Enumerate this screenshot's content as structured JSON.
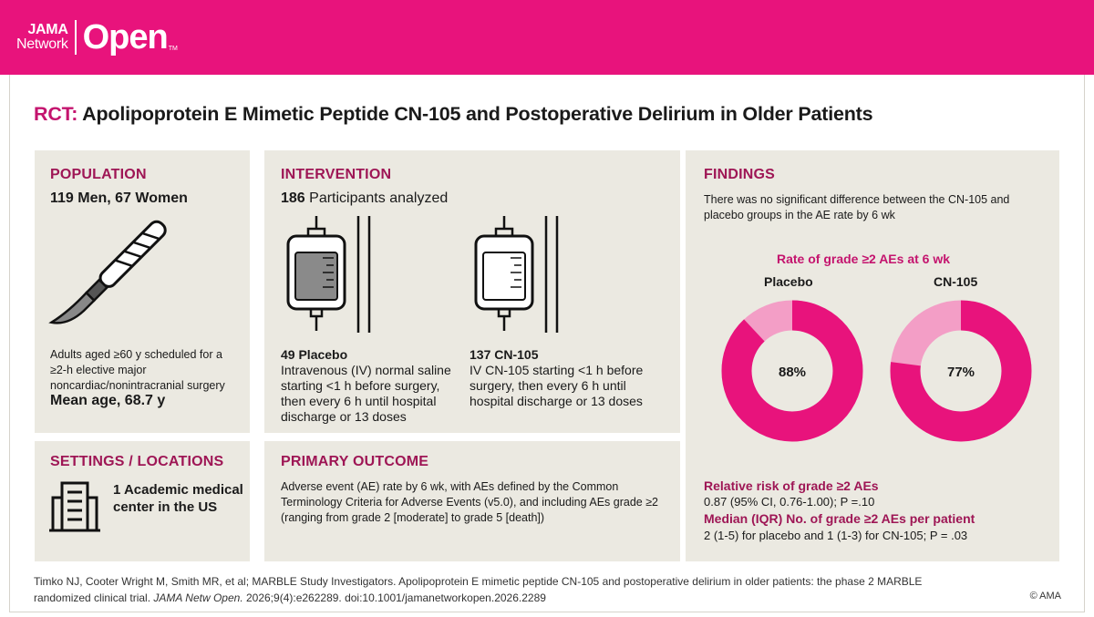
{
  "header": {
    "logo_top": "JAMA",
    "logo_bottom": "Network",
    "logo_main": "Open",
    "logo_tm": "TM"
  },
  "title": {
    "tag": "RCT:",
    "text": " Apolipoprotein E Mimetic Peptide CN-105 and Postoperative Delirium in Older Patients"
  },
  "population": {
    "heading": "POPULATION",
    "subtitle": "119 Men, 67 Women",
    "description": "Adults aged ≥60 y scheduled for a ≥2-h elective major noncardiac/nonintracranial surgery",
    "mean_age": "Mean age, 68.7 y"
  },
  "intervention": {
    "heading": "INTERVENTION",
    "count": "186",
    "count_label": " Participants analyzed",
    "placebo": {
      "number": "49",
      "label": " Placebo",
      "description": "Intravenous (IV) normal saline starting <1 h before surgery, then every 6 h until hospital discharge or 13 doses"
    },
    "cn105": {
      "number": "137",
      "label": " CN-105",
      "description": "IV CN-105 starting <1 h before surgery, then every 6 h until hospital discharge or 13 doses"
    }
  },
  "settings": {
    "heading": "SETTINGS / LOCATIONS",
    "text": "1 Academic medical center in the US"
  },
  "outcome": {
    "heading": "PRIMARY OUTCOME",
    "text": "Adverse event (AE) rate by 6 wk, with AEs defined by the Common Terminology Criteria for Adverse Events (v5.0), and including AEs grade ≥2 (ranging from grade 2 [moderate] to grade 5 [death])"
  },
  "findings": {
    "heading": "FINDINGS",
    "text": "There was no significant difference between the CN-105 and placebo groups in the AE rate by 6 wk",
    "chart_title": "Rate of grade ≥2 AEs at 6 wk",
    "rr_title": "Relative risk of grade ≥2 AEs",
    "rr_value": "0.87 (95% CI, 0.76-1.00); P =.10",
    "median_title": "Median (IQR) No. of grade ≥2 AEs per patient",
    "median_value": "2 (1-5) for placebo and 1 (1-3) for CN-105; P = .03"
  },
  "chart_data": {
    "type": "pie",
    "title": "Rate of grade ≥2 AEs at 6 wk",
    "series": [
      {
        "name": "Placebo",
        "value": 88,
        "label": "88%"
      },
      {
        "name": "CN-105",
        "value": 77,
        "label": "77%"
      }
    ],
    "colors": {
      "filled": "#e8137c",
      "remainder": "#f39ec6"
    }
  },
  "citation": {
    "text_a": "Timko NJ, Cooter Wright M, Smith MR, et al; MARBLE Study Investigators. Apolipoprotein E mimetic peptide CN-105 and postoperative delirium in older patients: the phase 2 MARBLE randomized clinical trial. ",
    "journal": "JAMA Netw Open.",
    "text_b": " 2026;9(4):e262289. doi:10.1001/jamanetworkopen.2026.2289",
    "copyright": "© AMA"
  },
  "colors": {
    "brand": "#e8137c",
    "heading": "#9e1655",
    "panel": "#ebe9e1"
  }
}
